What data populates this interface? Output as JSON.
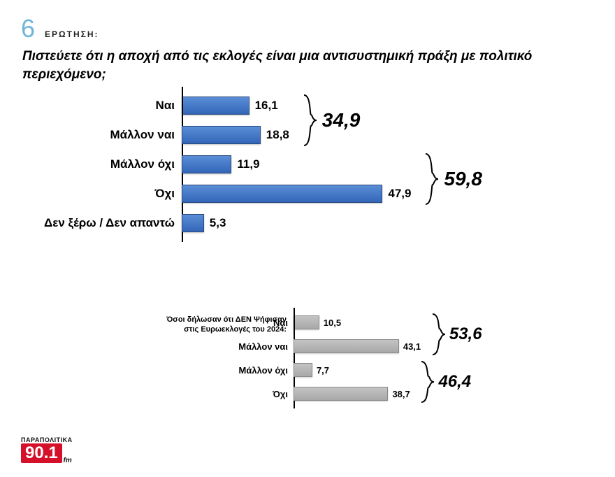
{
  "header": {
    "number": "6",
    "number_color": "#6eb5d8",
    "label": "ΕΡΩΤΗΣΗ:",
    "question": "Πιστεύετε ότι η αποχή από τις εκλογές είναι μια αντισυστημική πράξη με πολιτικό περιεχόμενο;"
  },
  "chart1": {
    "type": "bar-horizontal",
    "bar_color_top": "#5a8ed6",
    "bar_color_bottom": "#3366b8",
    "bar_border": "#2a4a80",
    "max_value": 60,
    "rows": [
      {
        "label": "Ναι",
        "value": "16,1",
        "num": 16.1
      },
      {
        "label": "Μάλλον ναι",
        "value": "18,8",
        "num": 18.8
      },
      {
        "label": "Μάλλον όχι",
        "value": "11,9",
        "num": 11.9
      },
      {
        "label": "Όχι",
        "value": "47,9",
        "num": 47.9
      },
      {
        "label": "Δεν ξέρω / Δεν απαντώ",
        "value": "5,3",
        "num": 5.3
      }
    ],
    "braces": [
      {
        "rows": [
          0,
          1
        ],
        "total": "34,9"
      },
      {
        "rows": [
          2,
          3
        ],
        "total": "59,8"
      }
    ]
  },
  "chart2": {
    "type": "bar-horizontal",
    "subhead_l1": "Όσοι δήλωσαν ότι ΔΕΝ Ψήφισαν",
    "subhead_l2": "στις Ευρωεκλογές του 2024:",
    "bar_color_top": "#c4c4c4",
    "bar_color_bottom": "#a8a8a8",
    "bar_border": "#8a8a8a",
    "max_value": 60,
    "rows": [
      {
        "label": "Ναι",
        "value": "10,5",
        "num": 10.5
      },
      {
        "label": "Μάλλον ναι",
        "value": "43,1",
        "num": 43.1
      },
      {
        "label": "Μάλλον όχι",
        "value": "7,7",
        "num": 7.7
      },
      {
        "label": "Όχι",
        "value": "38,7",
        "num": 38.7
      }
    ],
    "braces": [
      {
        "rows": [
          0,
          1
        ],
        "total": "53,6"
      },
      {
        "rows": [
          2,
          3
        ],
        "total": "46,4"
      }
    ]
  },
  "logo": {
    "top": "ΠΑΡΑΠΟΛΙΤΙΚΑ",
    "main": "90.1",
    "fm": "fm",
    "bg": "#d4102a"
  }
}
